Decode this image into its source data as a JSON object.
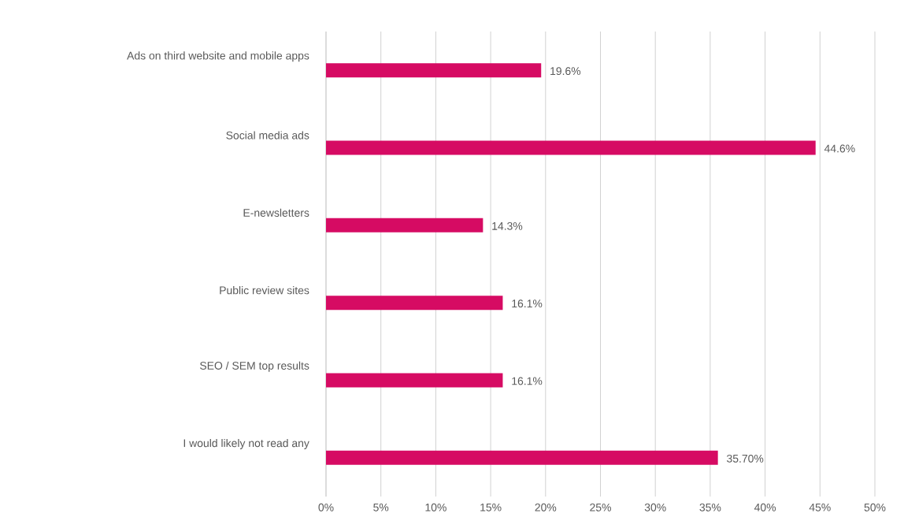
{
  "chart_data": {
    "type": "bar",
    "orientation": "horizontal",
    "categories": [
      "Ads on third website and mobile apps",
      "Social media ads",
      "E-newsletters",
      "Public review sites",
      "SEO / SEM top results",
      "I would likely not read any"
    ],
    "values": [
      19.6,
      44.6,
      14.3,
      16.1,
      16.1,
      35.7
    ],
    "value_labels": [
      "19.6%",
      "44.6%",
      "14.3%",
      "16.1%",
      "16.1%",
      "35.70%"
    ],
    "color": "#d60b63",
    "xlim": [
      0,
      50
    ],
    "xticks": [
      {
        "value": 0,
        "label": "0%"
      },
      {
        "value": 5,
        "label": "5%"
      },
      {
        "value": 10,
        "label": "10%"
      },
      {
        "value": 15,
        "label": "15%"
      },
      {
        "value": 20,
        "label": "20%"
      },
      {
        "value": 25,
        "label": "25%"
      },
      {
        "value": 30,
        "label": "30%"
      },
      {
        "value": 35,
        "label": "35%"
      },
      {
        "value": 40,
        "label": "40%"
      },
      {
        "value": 45,
        "label": "45%"
      },
      {
        "value": 50,
        "label": "50%"
      }
    ],
    "grid": "x"
  }
}
